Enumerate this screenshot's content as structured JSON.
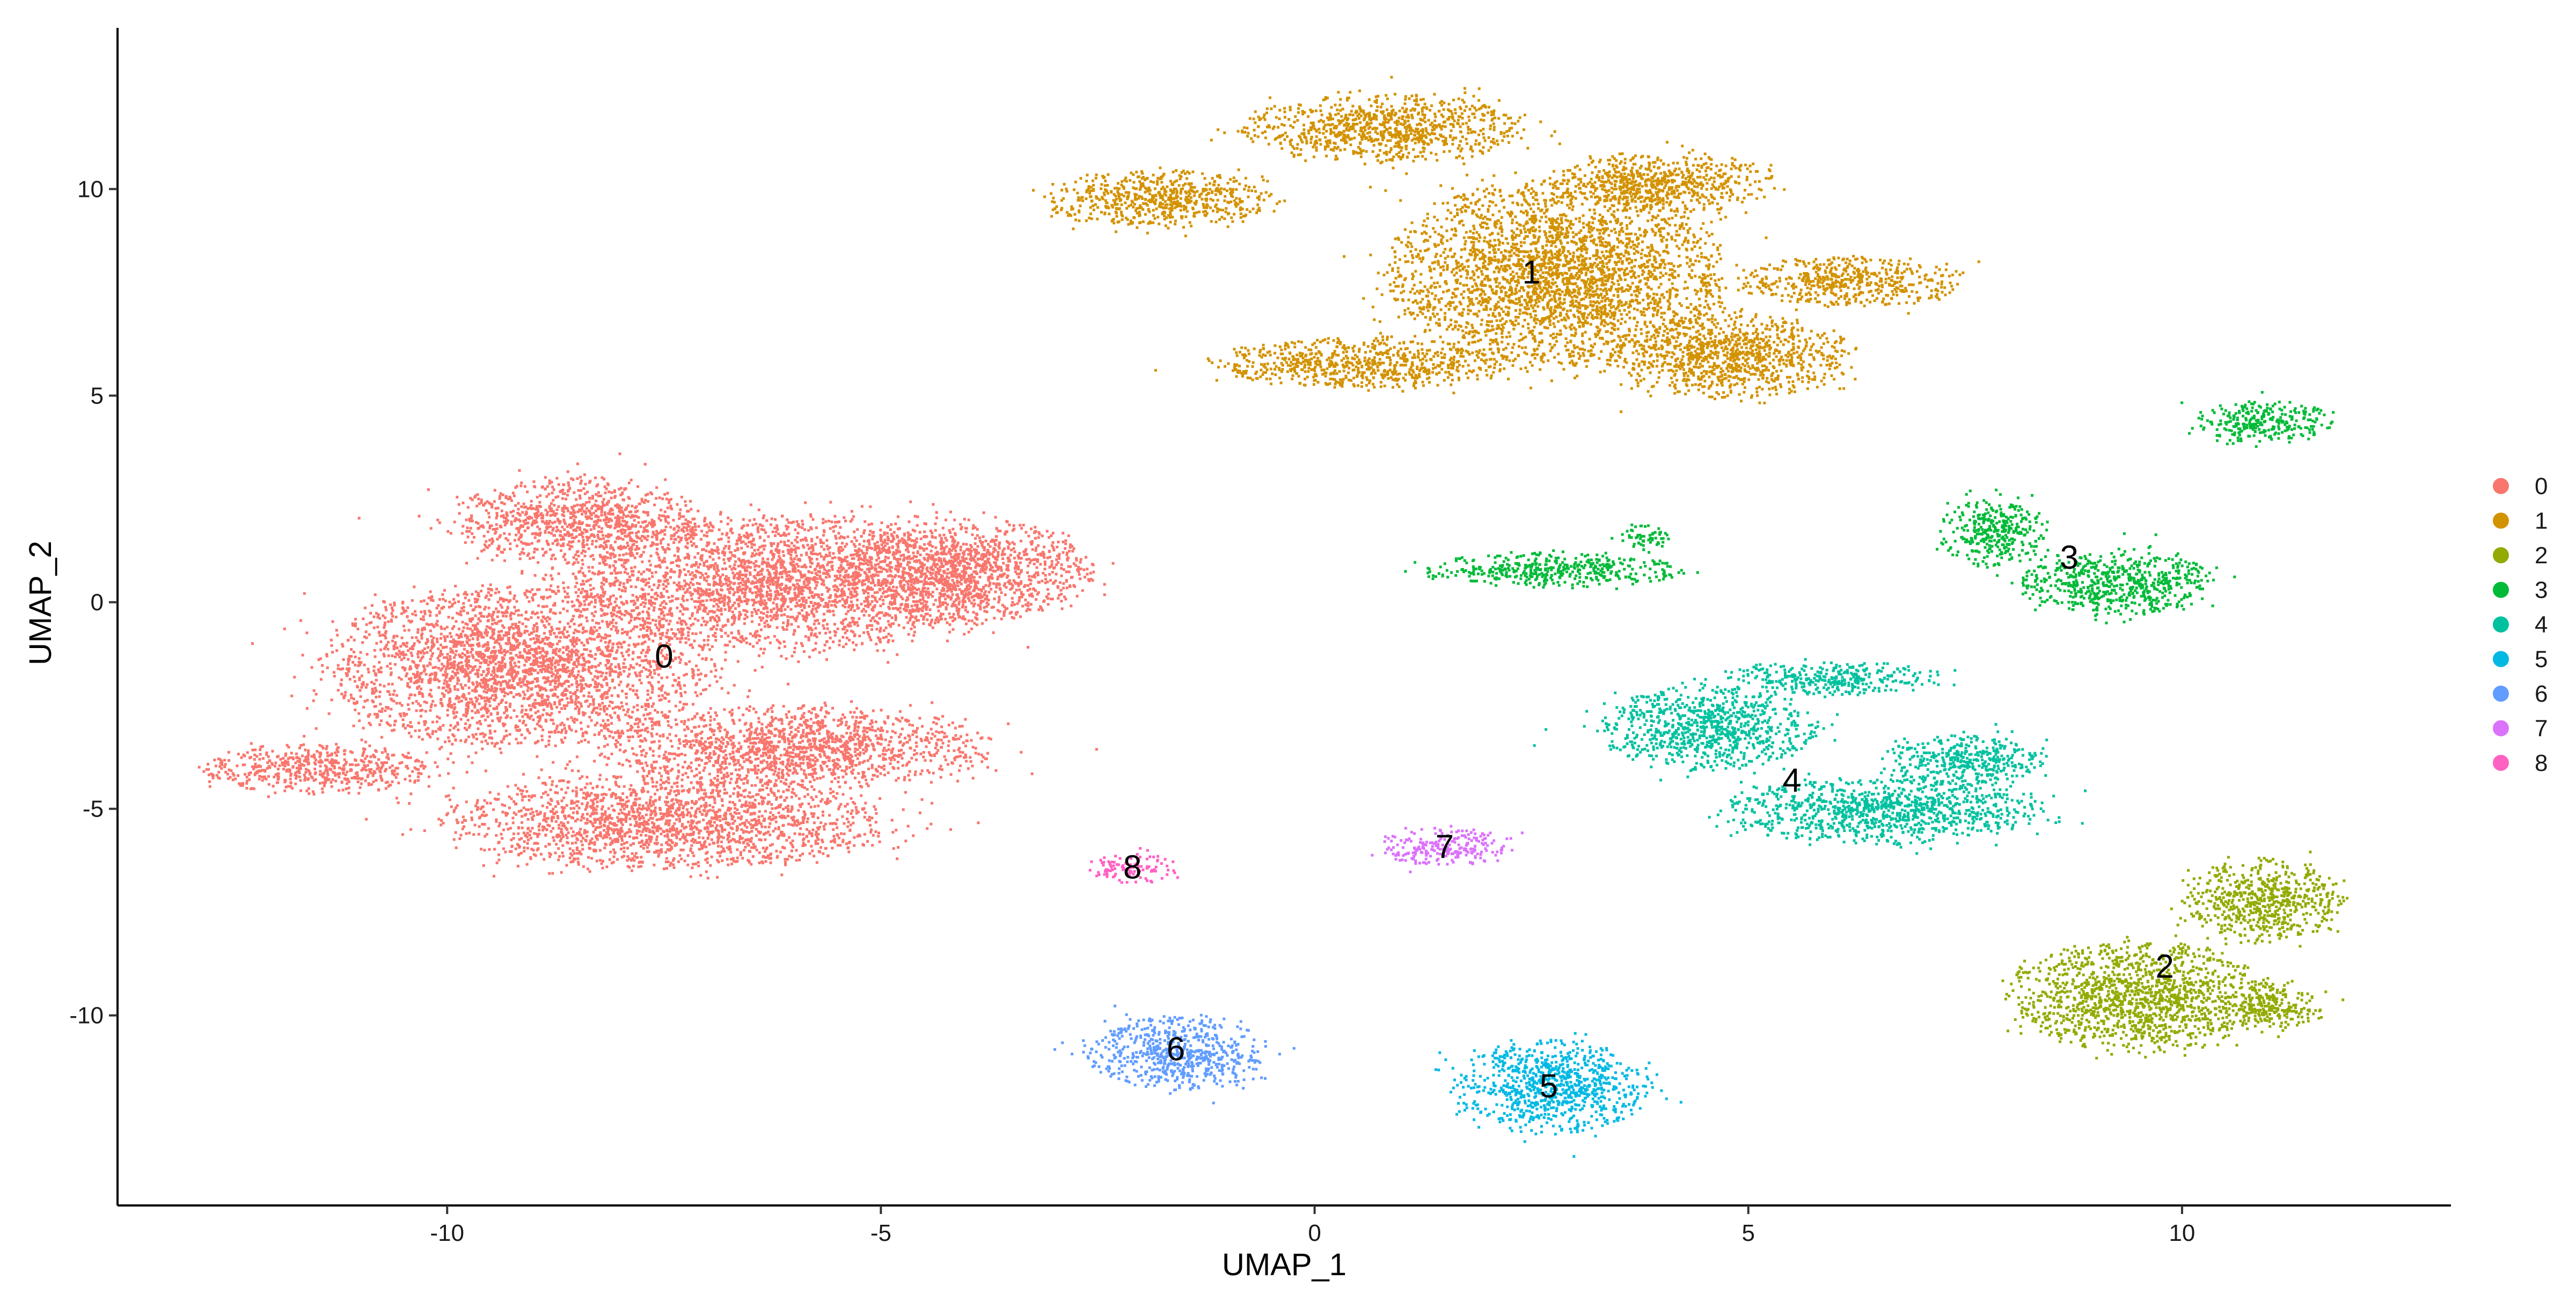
{
  "chart_data": {
    "type": "scatter",
    "title": "",
    "xlabel": "UMAP_1",
    "ylabel": "UMAP_2",
    "xlim": [
      -13.8,
      13.1
    ],
    "ylim": [
      -14.6,
      13.9
    ],
    "xticks": [
      -10,
      -5,
      0,
      5,
      10
    ],
    "yticks": [
      -10,
      -5,
      0,
      5,
      10
    ],
    "xtick_labels": [
      "-10",
      "-5",
      "0",
      "5",
      "10"
    ],
    "ytick_labels": [
      "-10",
      "-5",
      "0",
      "5",
      "10"
    ],
    "grid": false,
    "legend_position": "right",
    "series": [
      {
        "name": "0",
        "color": "#F8766D",
        "label_at": [
          -7.5,
          -1.3
        ],
        "lobes": [
          [
            -9.2,
            -1.5,
            2.2,
            1.9
          ],
          [
            -6.2,
            0.5,
            2.4,
            1.6
          ],
          [
            -4.0,
            0.8,
            1.4,
            1.2
          ],
          [
            -11.5,
            -4.0,
            1.3,
            0.6
          ],
          [
            -7.5,
            -5.3,
            2.5,
            1.1
          ],
          [
            -6.0,
            -3.5,
            2.2,
            1.0
          ],
          [
            -8.5,
            2.0,
            1.4,
            1.0
          ]
        ]
      },
      {
        "name": "1",
        "color": "#D39200",
        "label_at": [
          2.5,
          8.0
        ],
        "lobes": [
          [
            2.8,
            8.0,
            1.9,
            2.2
          ],
          [
            -1.8,
            9.8,
            1.3,
            0.7
          ],
          [
            0.8,
            11.5,
            1.6,
            0.8
          ],
          [
            4.8,
            6.0,
            1.4,
            1.0
          ],
          [
            6.2,
            7.8,
            1.2,
            0.6
          ],
          [
            0.5,
            5.8,
            1.7,
            0.6
          ],
          [
            4.0,
            10.2,
            1.3,
            0.7
          ]
        ]
      },
      {
        "name": "2",
        "color": "#93AA00",
        "label_at": [
          9.8,
          -8.8
        ],
        "lobes": [
          [
            9.5,
            -9.5,
            1.5,
            1.3
          ],
          [
            10.9,
            -7.2,
            0.9,
            1.0
          ],
          [
            11.0,
            -9.8,
            0.6,
            0.5
          ]
        ]
      },
      {
        "name": "3",
        "color": "#00BA38",
        "label_at": [
          8.7,
          1.1
        ],
        "lobes": [
          [
            9.2,
            0.5,
            1.1,
            0.8
          ],
          [
            7.8,
            1.7,
            0.6,
            0.8
          ],
          [
            10.9,
            4.4,
            0.8,
            0.5
          ],
          [
            2.7,
            0.8,
            1.5,
            0.4
          ],
          [
            3.8,
            1.6,
            0.3,
            0.3
          ]
        ]
      },
      {
        "name": "4",
        "color": "#00C19F",
        "label_at": [
          5.5,
          -4.3
        ],
        "lobes": [
          [
            6.5,
            -5.0,
            1.8,
            0.8
          ],
          [
            4.5,
            -3.0,
            1.2,
            1.0
          ],
          [
            6.0,
            -1.8,
            1.2,
            0.4
          ],
          [
            7.5,
            -3.8,
            0.9,
            0.6
          ]
        ]
      },
      {
        "name": "5",
        "color": "#00B9E3",
        "label_at": [
          2.7,
          -11.7
        ],
        "lobes": [
          [
            2.7,
            -11.7,
            1.1,
            1.1
          ]
        ]
      },
      {
        "name": "6",
        "color": "#619CFF",
        "label_at": [
          -1.6,
          -10.8
        ],
        "lobes": [
          [
            -1.6,
            -10.9,
            1.0,
            0.9
          ]
        ]
      },
      {
        "name": "7",
        "color": "#DB72FB",
        "label_at": [
          1.5,
          -5.9
        ],
        "lobes": [
          [
            1.5,
            -5.9,
            0.75,
            0.45
          ]
        ]
      },
      {
        "name": "8",
        "color": "#FF61C3",
        "label_at": [
          -2.1,
          -6.4
        ],
        "lobes": [
          [
            -2.1,
            -6.4,
            0.45,
            0.35
          ]
        ]
      }
    ]
  }
}
